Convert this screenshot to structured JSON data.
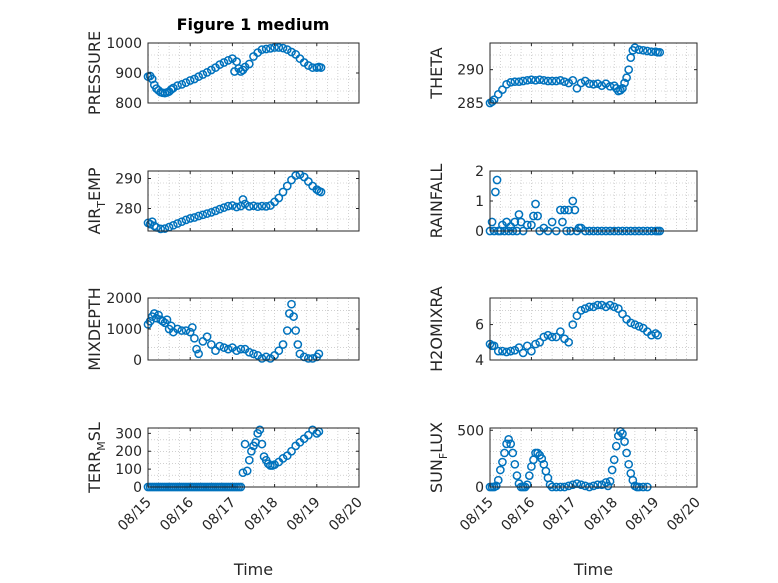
{
  "figure": {
    "title": "Figure 1 medium"
  },
  "colors": {
    "marker": "#0072BD",
    "axis": "#262626",
    "grid": "#b4b4b4",
    "background": "#ffffff"
  },
  "x_axis": {
    "label": "Time",
    "tick_values": [
      0,
      1,
      2,
      3,
      4,
      5
    ],
    "tick_labels": [
      "08/15",
      "08/16",
      "08/17",
      "08/18",
      "08/19",
      "08/20"
    ],
    "range": [
      0,
      5
    ]
  },
  "chart_data": [
    {
      "type": "scatter",
      "ylabel_main": "PRESSURE",
      "ylabel_sub": "",
      "ylim": [
        800,
        1000
      ],
      "yticks": [
        800,
        900,
        1000
      ],
      "x": [
        0.0,
        0.05,
        0.1,
        0.15,
        0.2,
        0.25,
        0.3,
        0.35,
        0.4,
        0.45,
        0.5,
        0.55,
        0.6,
        0.7,
        0.8,
        0.9,
        1.0,
        1.1,
        1.2,
        1.3,
        1.4,
        1.5,
        1.6,
        1.7,
        1.8,
        1.9,
        2.0,
        2.05,
        2.1,
        2.15,
        2.2,
        2.25,
        2.3,
        2.4,
        2.5,
        2.6,
        2.7,
        2.8,
        2.9,
        3.0,
        3.1,
        3.2,
        3.3,
        3.4,
        3.5,
        3.6,
        3.7,
        3.8,
        3.9,
        4.0,
        4.05,
        4.1
      ],
      "y": [
        888,
        890,
        880,
        860,
        848,
        842,
        836,
        834,
        833,
        835,
        838,
        845,
        850,
        858,
        862,
        868,
        875,
        880,
        888,
        895,
        902,
        910,
        918,
        928,
        935,
        942,
        948,
        905,
        938,
        915,
        905,
        910,
        920,
        930,
        955,
        968,
        978,
        980,
        982,
        985,
        985,
        983,
        978,
        970,
        962,
        948,
        935,
        925,
        918,
        918,
        920,
        918
      ]
    },
    {
      "type": "scatter",
      "ylabel_main": "THETA",
      "ylabel_sub": "",
      "ylim": [
        285,
        294
      ],
      "yticks": [
        285,
        290
      ],
      "x": [
        0.0,
        0.05,
        0.1,
        0.2,
        0.3,
        0.4,
        0.5,
        0.6,
        0.7,
        0.8,
        0.9,
        1.0,
        1.1,
        1.2,
        1.3,
        1.4,
        1.5,
        1.6,
        1.7,
        1.8,
        1.9,
        2.0,
        2.1,
        2.2,
        2.3,
        2.4,
        2.5,
        2.6,
        2.7,
        2.8,
        2.9,
        3.0,
        3.05,
        3.1,
        3.15,
        3.2,
        3.25,
        3.3,
        3.35,
        3.4,
        3.45,
        3.5,
        3.6,
        3.7,
        3.8,
        3.9,
        4.0,
        4.05,
        4.1
      ],
      "y": [
        285.0,
        285.2,
        285.5,
        286.3,
        287.0,
        287.8,
        288.1,
        288.2,
        288.2,
        288.3,
        288.4,
        288.5,
        288.4,
        288.5,
        288.4,
        288.3,
        288.3,
        288.3,
        288.4,
        288.2,
        288.0,
        288.4,
        287.2,
        288.0,
        288.3,
        287.9,
        287.8,
        287.9,
        287.6,
        287.9,
        287.5,
        287.6,
        287.2,
        286.8,
        286.9,
        287.2,
        288.0,
        288.8,
        290.0,
        291.8,
        292.9,
        293.3,
        293.0,
        292.9,
        292.8,
        292.7,
        292.7,
        292.6,
        292.6
      ]
    },
    {
      "type": "scatter",
      "ylabel_main": "AIR",
      "ylabel_sub": "T",
      "ylabel_suffix": "EMP",
      "ylim": [
        272.5,
        292.5
      ],
      "yticks": [
        280,
        290
      ],
      "x": [
        0.0,
        0.05,
        0.1,
        0.15,
        0.2,
        0.3,
        0.4,
        0.5,
        0.6,
        0.7,
        0.8,
        0.9,
        1.0,
        1.1,
        1.2,
        1.3,
        1.4,
        1.5,
        1.6,
        1.7,
        1.8,
        1.9,
        2.0,
        2.1,
        2.2,
        2.25,
        2.3,
        2.4,
        2.5,
        2.6,
        2.7,
        2.8,
        2.9,
        3.0,
        3.1,
        3.2,
        3.3,
        3.4,
        3.5,
        3.6,
        3.7,
        3.8,
        3.9,
        4.0,
        4.05,
        4.1
      ],
      "y": [
        275.2,
        274.8,
        275.6,
        274.2,
        273.7,
        273.2,
        273.3,
        273.8,
        274.4,
        275.0,
        275.6,
        276.2,
        276.7,
        277.0,
        277.5,
        277.9,
        278.3,
        278.7,
        279.2,
        279.8,
        280.3,
        280.8,
        281.0,
        280.5,
        280.8,
        283.0,
        281.5,
        280.7,
        280.9,
        280.6,
        280.8,
        280.7,
        281.0,
        282.2,
        283.5,
        285.5,
        287.5,
        289.5,
        291.0,
        291.3,
        290.5,
        289.0,
        287.5,
        286.3,
        285.8,
        285.5
      ]
    },
    {
      "type": "scatter",
      "ylabel_main": "RAINFALL",
      "ylabel_sub": "",
      "ylim": [
        0,
        2
      ],
      "yticks": [
        0,
        1,
        2
      ],
      "x": [
        0.0,
        0.05,
        0.1,
        0.13,
        0.17,
        0.2,
        0.25,
        0.3,
        0.35,
        0.4,
        0.45,
        0.5,
        0.55,
        0.6,
        0.65,
        0.7,
        0.75,
        0.8,
        0.9,
        1.0,
        1.05,
        1.1,
        1.15,
        1.2,
        1.3,
        1.4,
        1.5,
        1.6,
        1.7,
        1.75,
        1.8,
        1.85,
        1.9,
        1.95,
        2.0,
        2.05,
        2.1,
        2.15,
        2.2,
        2.3,
        2.4,
        2.5,
        2.6,
        2.7,
        2.8,
        2.9,
        3.0,
        3.1,
        3.2,
        3.3,
        3.4,
        3.5,
        3.6,
        3.7,
        3.8,
        3.9,
        4.0,
        4.05,
        4.1
      ],
      "y": [
        0,
        0.3,
        0,
        1.3,
        1.7,
        0,
        0,
        0.2,
        0,
        0.3,
        0,
        0.15,
        0,
        0.3,
        0,
        0.55,
        0.3,
        0,
        0.2,
        0.2,
        0.5,
        0.9,
        0.5,
        0,
        0.1,
        0,
        0.3,
        0,
        0.7,
        0.3,
        0.7,
        0,
        0.7,
        0,
        1.0,
        0.7,
        0,
        0.1,
        0.1,
        0,
        0,
        0,
        0,
        0,
        0,
        0,
        0,
        0,
        0,
        0,
        0,
        0,
        0,
        0,
        0,
        0,
        0,
        0,
        0
      ]
    },
    {
      "type": "scatter",
      "ylabel_main": "MIXDEPTH",
      "ylabel_sub": "",
      "ylim": [
        0,
        2000
      ],
      "yticks": [
        0,
        1000,
        2000
      ],
      "x": [
        0.0,
        0.05,
        0.1,
        0.15,
        0.2,
        0.25,
        0.3,
        0.35,
        0.4,
        0.45,
        0.5,
        0.55,
        0.6,
        0.7,
        0.8,
        0.9,
        1.0,
        1.05,
        1.1,
        1.15,
        1.2,
        1.3,
        1.4,
        1.5,
        1.6,
        1.7,
        1.8,
        1.9,
        2.0,
        2.1,
        2.2,
        2.3,
        2.4,
        2.5,
        2.6,
        2.7,
        2.8,
        2.9,
        3.0,
        3.1,
        3.2,
        3.3,
        3.35,
        3.4,
        3.45,
        3.5,
        3.55,
        3.6,
        3.7,
        3.8,
        3.9,
        4.0,
        4.05
      ],
      "y": [
        1150,
        1250,
        1400,
        1500,
        1350,
        1450,
        1300,
        1250,
        1200,
        1300,
        1000,
        1100,
        900,
        1000,
        950,
        950,
        900,
        1050,
        700,
        350,
        200,
        600,
        750,
        500,
        300,
        450,
        400,
        350,
        400,
        300,
        350,
        350,
        250,
        200,
        150,
        50,
        100,
        50,
        150,
        300,
        500,
        950,
        1500,
        1800,
        1400,
        950,
        500,
        200,
        100,
        50,
        50,
        100,
        200
      ]
    },
    {
      "type": "scatter",
      "ylabel_main": "H2OMIXRA",
      "ylabel_sub": "",
      "ylim": [
        4,
        7.5
      ],
      "yticks": [
        4,
        6
      ],
      "x": [
        0.0,
        0.05,
        0.1,
        0.2,
        0.3,
        0.4,
        0.5,
        0.6,
        0.7,
        0.8,
        0.9,
        1.0,
        1.1,
        1.2,
        1.3,
        1.4,
        1.5,
        1.6,
        1.7,
        1.8,
        1.9,
        2.0,
        2.1,
        2.2,
        2.3,
        2.4,
        2.5,
        2.6,
        2.7,
        2.8,
        2.9,
        3.0,
        3.1,
        3.2,
        3.3,
        3.4,
        3.5,
        3.6,
        3.7,
        3.8,
        3.9,
        4.0,
        4.05
      ],
      "y": [
        4.9,
        4.8,
        4.8,
        4.5,
        4.5,
        4.45,
        4.5,
        4.55,
        4.7,
        4.4,
        4.8,
        4.5,
        4.9,
        5.0,
        5.3,
        5.4,
        5.3,
        5.3,
        5.6,
        5.2,
        5.0,
        6.0,
        6.5,
        6.8,
        6.9,
        7.0,
        7.0,
        7.1,
        7.1,
        7.0,
        7.1,
        7.0,
        6.9,
        6.6,
        6.3,
        6.1,
        6.0,
        5.9,
        5.8,
        5.6,
        5.4,
        5.5,
        5.4
      ]
    },
    {
      "type": "scatter",
      "ylabel_main": "TERR",
      "ylabel_sub": "M",
      "ylabel_suffix": "SL",
      "ylim": [
        0,
        330
      ],
      "yticks": [
        0,
        100,
        200,
        300
      ],
      "x": [
        0.0,
        0.05,
        0.1,
        0.15,
        0.2,
        0.25,
        0.3,
        0.35,
        0.4,
        0.45,
        0.5,
        0.55,
        0.6,
        0.65,
        0.7,
        0.75,
        0.8,
        0.85,
        0.9,
        0.95,
        1.0,
        1.05,
        1.1,
        1.15,
        1.2,
        1.25,
        1.3,
        1.35,
        1.4,
        1.45,
        1.5,
        1.55,
        1.6,
        1.65,
        1.7,
        1.75,
        1.8,
        1.85,
        1.9,
        1.95,
        2.0,
        2.05,
        2.1,
        2.15,
        2.2,
        2.25,
        2.3,
        2.35,
        2.4,
        2.45,
        2.5,
        2.55,
        2.6,
        2.65,
        2.7,
        2.75,
        2.8,
        2.85,
        2.9,
        2.95,
        3.0,
        3.1,
        3.2,
        3.3,
        3.4,
        3.5,
        3.6,
        3.7,
        3.8,
        3.9,
        4.0,
        4.05
      ],
      "y": [
        0,
        0,
        0,
        0,
        0,
        0,
        0,
        0,
        0,
        0,
        0,
        0,
        0,
        0,
        0,
        0,
        0,
        0,
        0,
        0,
        0,
        0,
        0,
        0,
        0,
        0,
        0,
        0,
        0,
        0,
        0,
        0,
        0,
        0,
        0,
        0,
        0,
        0,
        0,
        0,
        0,
        0,
        0,
        0,
        0,
        80,
        240,
        90,
        150,
        200,
        230,
        250,
        300,
        320,
        240,
        170,
        150,
        130,
        120,
        120,
        125,
        140,
        160,
        175,
        200,
        230,
        250,
        270,
        290,
        320,
        300,
        310
      ]
    },
    {
      "type": "scatter",
      "ylabel_main": "SUN",
      "ylabel_sub": "F",
      "ylabel_suffix": "LUX",
      "ylim": [
        0,
        520
      ],
      "yticks": [
        0,
        500
      ],
      "x": [
        0.0,
        0.05,
        0.1,
        0.15,
        0.2,
        0.25,
        0.3,
        0.35,
        0.4,
        0.45,
        0.5,
        0.55,
        0.6,
        0.65,
        0.7,
        0.75,
        0.8,
        0.85,
        0.9,
        0.95,
        1.0,
        1.05,
        1.1,
        1.15,
        1.2,
        1.25,
        1.3,
        1.35,
        1.4,
        1.45,
        1.5,
        1.6,
        1.7,
        1.8,
        1.9,
        2.0,
        2.1,
        2.2,
        2.3,
        2.4,
        2.5,
        2.6,
        2.7,
        2.8,
        2.85,
        2.9,
        2.95,
        3.0,
        3.05,
        3.1,
        3.15,
        3.2,
        3.25,
        3.3,
        3.35,
        3.4,
        3.45,
        3.5,
        3.55,
        3.6,
        3.7,
        3.8
      ],
      "y": [
        0,
        0,
        0,
        10,
        60,
        150,
        220,
        300,
        380,
        420,
        380,
        300,
        200,
        100,
        30,
        0,
        0,
        0,
        20,
        100,
        180,
        240,
        300,
        300,
        280,
        250,
        200,
        140,
        80,
        20,
        0,
        0,
        0,
        0,
        10,
        20,
        30,
        20,
        10,
        0,
        10,
        20,
        20,
        40,
        10,
        50,
        150,
        240,
        360,
        450,
        490,
        470,
        400,
        300,
        200,
        120,
        60,
        10,
        0,
        0,
        0,
        0
      ]
    }
  ]
}
